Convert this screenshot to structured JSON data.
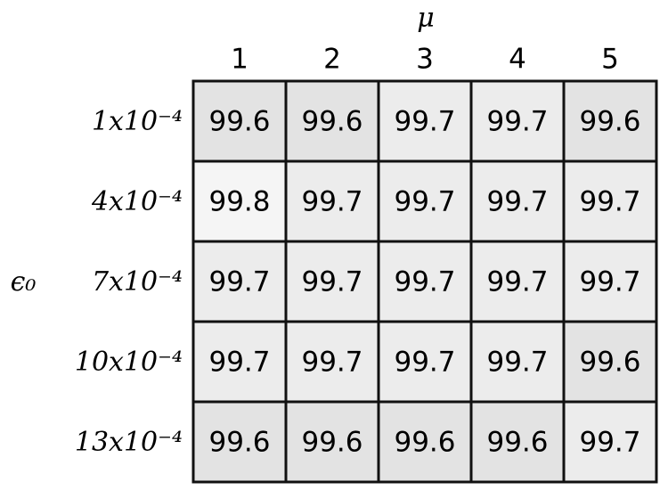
{
  "chart_data": {
    "type": "heatmap",
    "x_label": "μ",
    "y_label": "ϵ₀",
    "x_categories": [
      "1",
      "2",
      "3",
      "4",
      "5"
    ],
    "y_categories": [
      "1x10⁻⁴",
      "4x10⁻⁴",
      "7x10⁻⁴",
      "10x10⁻⁴",
      "13x10⁻⁴"
    ],
    "values": [
      [
        99.6,
        99.6,
        99.7,
        99.7,
        99.6
      ],
      [
        99.8,
        99.7,
        99.7,
        99.7,
        99.7
      ],
      [
        99.7,
        99.7,
        99.7,
        99.7,
        99.7
      ],
      [
        99.7,
        99.7,
        99.7,
        99.7,
        99.6
      ],
      [
        99.6,
        99.6,
        99.6,
        99.6,
        99.7
      ]
    ],
    "colors": [
      "#e3e3e3",
      "#f5f5f5"
    ]
  }
}
